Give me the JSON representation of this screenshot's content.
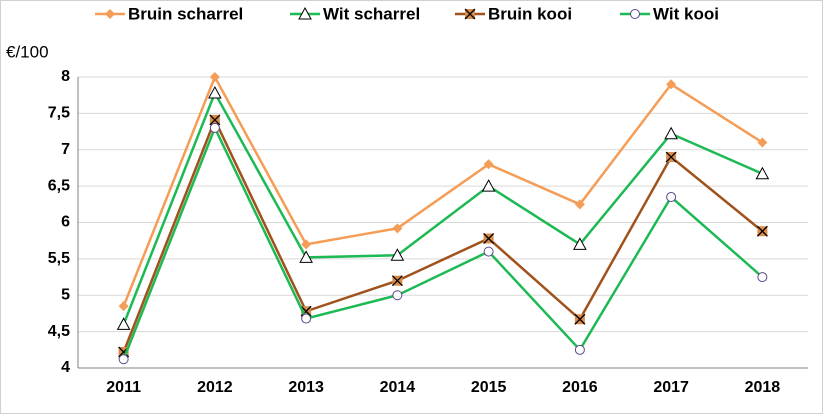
{
  "chart_data": {
    "type": "line",
    "y_label": "€/100",
    "categories": [
      "2011",
      "2012",
      "2013",
      "2014",
      "2015",
      "2016",
      "2017",
      "2018"
    ],
    "ylim": [
      4,
      8
    ],
    "yticks": [
      4,
      {
        "value": 4.5,
        "label": "4,5"
      },
      5,
      {
        "value": 5.5,
        "label": "5,5"
      },
      6,
      {
        "value": 6.5,
        "label": "6,5"
      },
      7,
      {
        "value": 7.5,
        "label": "7,5"
      },
      8
    ],
    "grid": true,
    "legend": "top",
    "series": [
      {
        "name": "Bruin scharrel",
        "color": "#f59d56",
        "marker": "diamond",
        "values": [
          4.85,
          8.0,
          5.7,
          5.92,
          6.8,
          6.25,
          7.9,
          7.1
        ]
      },
      {
        "name": "Wit scharrel",
        "color": "#1db954",
        "marker": "triangle",
        "values": [
          4.6,
          7.78,
          5.52,
          5.55,
          6.5,
          5.7,
          7.22,
          6.67
        ]
      },
      {
        "name": "Bruin kooi",
        "color": "#a0521c",
        "marker": "x",
        "values": [
          4.22,
          7.41,
          4.78,
          5.2,
          5.78,
          4.67,
          6.9,
          5.88
        ]
      },
      {
        "name": "Wit kooi",
        "color": "#1db954",
        "marker": "circle",
        "values": [
          4.12,
          7.3,
          4.68,
          5.0,
          5.6,
          4.25,
          6.35,
          5.25
        ]
      }
    ]
  }
}
